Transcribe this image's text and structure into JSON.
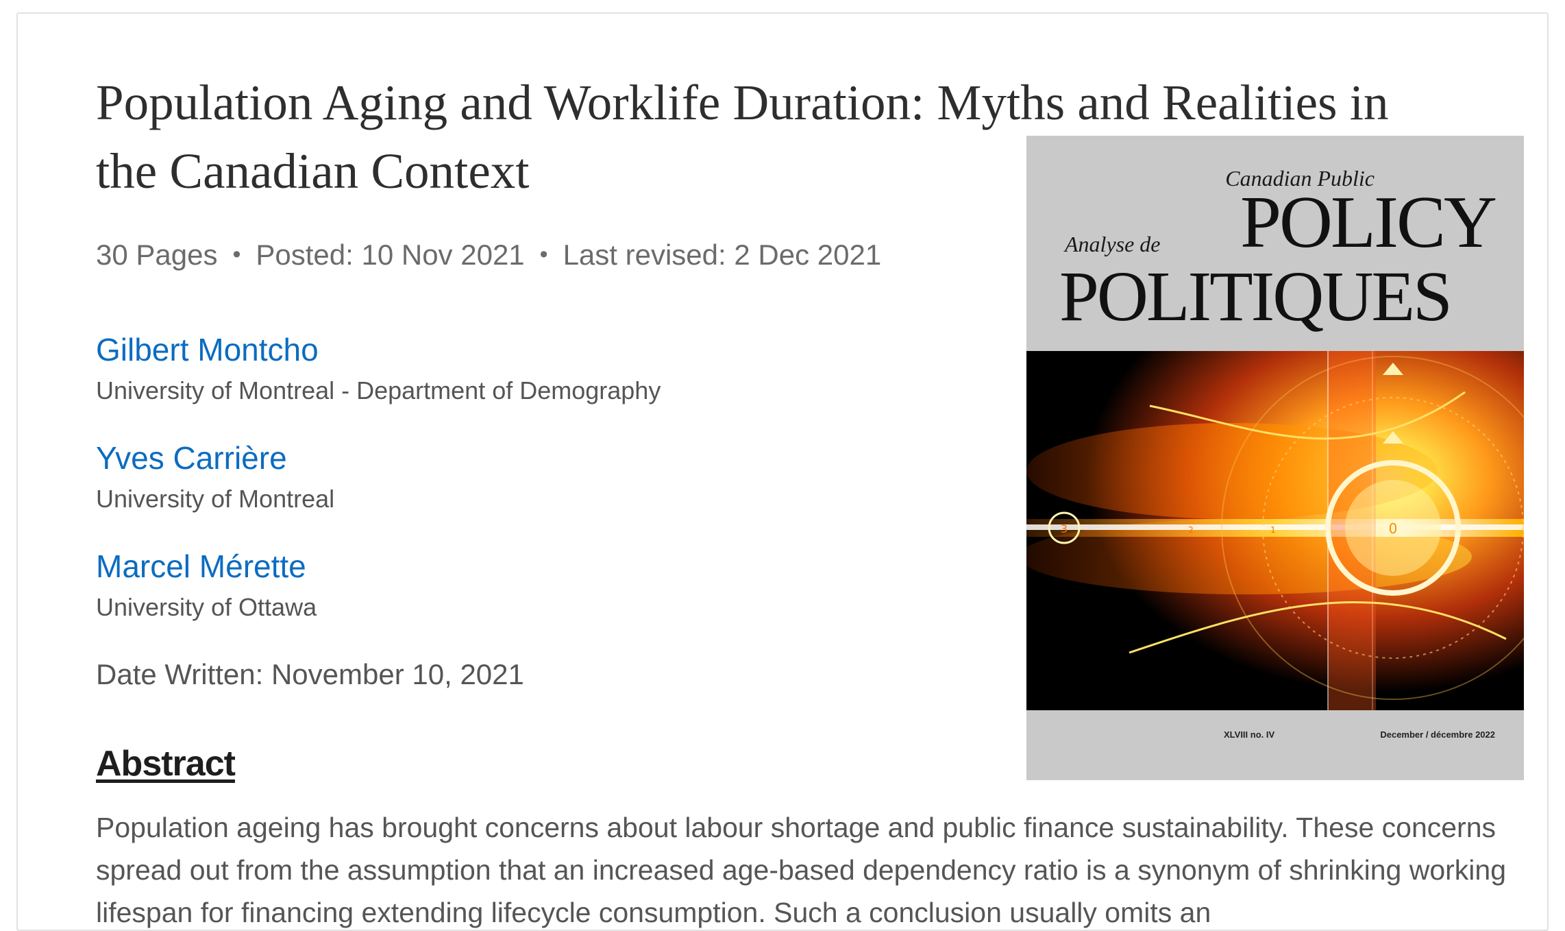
{
  "paper": {
    "title": "Population Aging and Worklife Duration: Myths and Realities in the Canadian Context",
    "pages": "30 Pages",
    "posted": "Posted: 10 Nov 2021",
    "last_revised": "Last revised: 2 Dec 2021",
    "separator": "•",
    "date_written": "Date Written: November 10, 2021"
  },
  "authors": [
    {
      "name": "Gilbert Montcho",
      "affiliation": "University of Montreal - Department of Demography"
    },
    {
      "name": "Yves Carrière",
      "affiliation": "University of Montreal"
    },
    {
      "name": "Marcel Mérette",
      "affiliation": "University of Ottawa"
    }
  ],
  "abstract": {
    "heading": "Abstract",
    "text": "Population ageing has brought concerns about labour shortage and public finance sustainability. These concerns spread out from the assumption that an increased age-based dependency ratio is a synonym of shrinking working lifespan for financing extending lifecycle consumption. Such a conclusion usually omits an"
  },
  "cover": {
    "canadian_public": "Canadian Public",
    "policy": "POLICY",
    "analyse_de": "Analyse de",
    "politiques": "POLITIQUES",
    "volume": "XLVIII no. IV",
    "date": "December / décembre 2022",
    "dial_labels": [
      "3",
      "2",
      "1",
      "0"
    ]
  },
  "colors": {
    "link": "#0b6cc0",
    "title": "#2e2e2e",
    "cover_bg": "#c9c9c9"
  }
}
